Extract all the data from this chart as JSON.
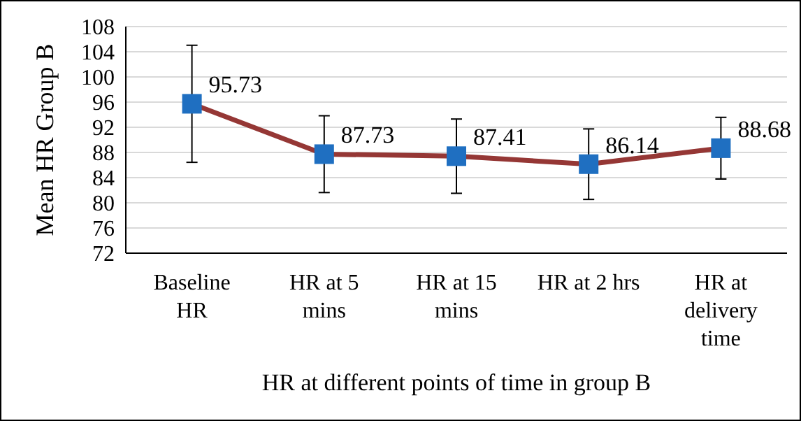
{
  "chart_data": {
    "type": "line",
    "xlabel": "HR at different points of time in group B",
    "ylabel": "Mean HR Group B",
    "categories": [
      "Baseline HR",
      "HR at 5 mins",
      "HR at 15 mins",
      "HR at 2 hrs",
      "HR at delivery time"
    ],
    "series": [
      {
        "color": "#953735",
        "values": [
          95.73,
          87.73,
          87.41,
          86.14,
          88.68
        ],
        "errors": [
          9.3,
          6.1,
          5.9,
          5.6,
          4.9
        ]
      }
    ],
    "ylim": [
      72,
      108
    ],
    "yticks": [
      72,
      76,
      80,
      84,
      88,
      92,
      96,
      100,
      104,
      108
    ],
    "grid": "y",
    "marker": "square",
    "line_style": "solid",
    "data_labels": true
  }
}
